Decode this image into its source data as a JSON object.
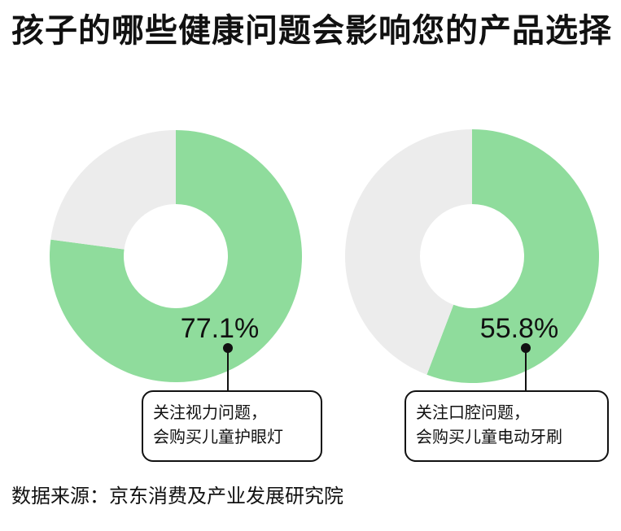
{
  "title": "孩子的哪些健康问题会影响您的产品选择",
  "source": "数据来源：京东消费及产业发展研究院",
  "colors": {
    "highlight": "#8fdc9c",
    "remainder": "#ececec",
    "text": "#111111"
  },
  "chart_data": [
    {
      "type": "pie",
      "style": "donut",
      "slices": [
        {
          "value": 77.1,
          "color": "#8fdc9c"
        },
        {
          "value": 22.9,
          "color": "#ececec"
        }
      ],
      "value_label": "77.1%",
      "annotation": {
        "line1": "关注视力问题，",
        "line2": "会购买儿童护眼灯"
      }
    },
    {
      "type": "pie",
      "style": "donut",
      "slices": [
        {
          "value": 55.8,
          "color": "#8fdc9c"
        },
        {
          "value": 44.2,
          "color": "#ececec"
        }
      ],
      "value_label": "55.8%",
      "annotation": {
        "line1": "关注口腔问题，",
        "line2": "会购买儿童电动牙刷"
      }
    }
  ]
}
